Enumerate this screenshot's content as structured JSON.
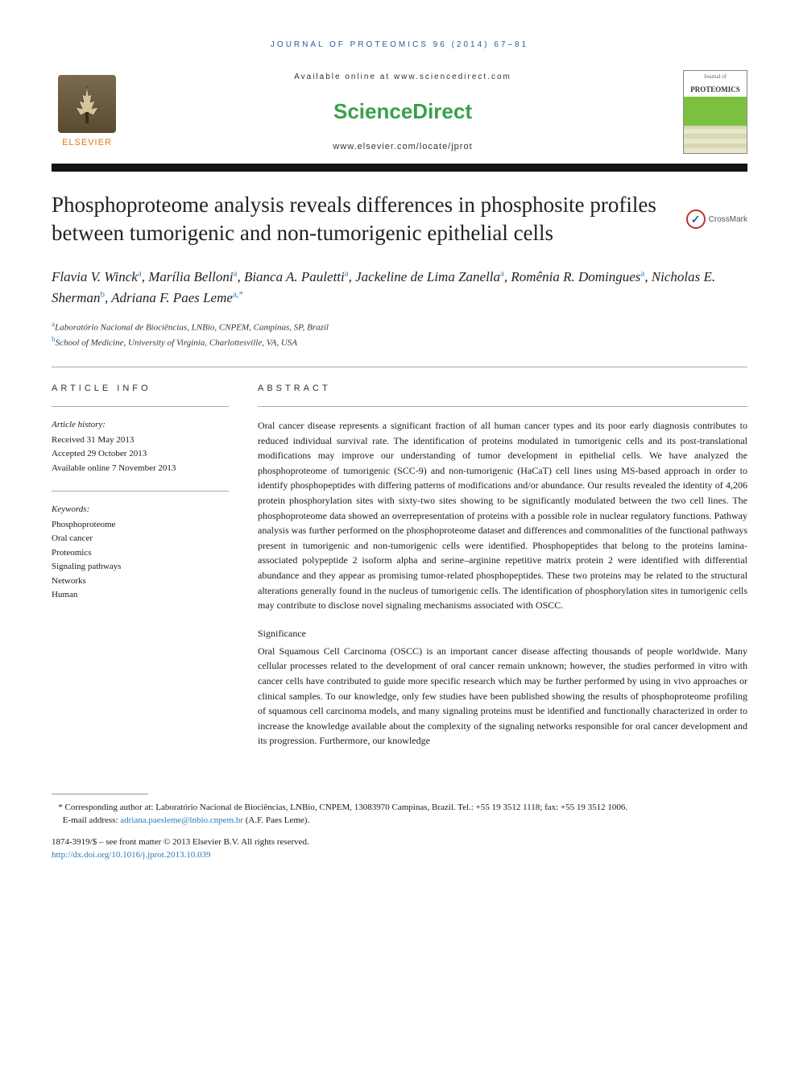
{
  "journal_ref": "JOURNAL OF PROTEOMICS 96 (2014) 67–81",
  "banner": {
    "publisher_name": "ELSEVIER",
    "avail_online": "Available online at www.sciencedirect.com",
    "brand": "ScienceDirect",
    "locate_url": "www.elsevier.com/locate/jprot",
    "cover_journal": "Journal of",
    "cover_title": "PROTEOMICS"
  },
  "title": "Phosphoproteome analysis reveals differences in phosphosite profiles between tumorigenic and non-tumorigenic epithelial cells",
  "crossmark_label": "CrossMark",
  "authors_html": "Flavia V. Winck<sup>a</sup>, Marília Belloni<sup>a</sup>, Bianca A. Pauletti<sup>a</sup>, Jackeline de Lima Zanella<sup>a</sup>, Romênia R. Domingues<sup>a</sup>, Nicholas E. Sherman<sup>b</sup>, Adriana F. Paes Leme<sup>a,*</sup>",
  "affiliations": {
    "a": "Laboratório Nacional de Biociências, LNBio, CNPEM, Campinas, SP, Brazil",
    "b": "School of Medicine, University of Virginia, Charlottesville, VA, USA"
  },
  "article_info": {
    "label": "ARTICLE INFO",
    "history_heading": "Article history:",
    "received": "Received 31 May 2013",
    "accepted": "Accepted 29 October 2013",
    "online": "Available online 7 November 2013",
    "keywords_heading": "Keywords:",
    "keywords": [
      "Phosphoproteome",
      "Oral cancer",
      "Proteomics",
      "Signaling pathways",
      "Networks",
      "Human"
    ]
  },
  "abstract": {
    "label": "ABSTRACT",
    "text": "Oral cancer disease represents a significant fraction of all human cancer types and its poor early diagnosis contributes to reduced individual survival rate. The identification of proteins modulated in tumorigenic cells and its post-translational modifications may improve our understanding of tumor development in epithelial cells. We have analyzed the phosphoproteome of tumorigenic (SCC-9) and non-tumorigenic (HaCaT) cell lines using MS-based approach in order to identify phosphopeptides with differing patterns of modifications and/or abundance. Our results revealed the identity of 4,206 protein phosphorylation sites with sixty-two sites showing to be significantly modulated between the two cell lines. The phosphoproteome data showed an overrepresentation of proteins with a possible role in nuclear regulatory functions. Pathway analysis was further performed on the phosphoproteome dataset and differences and commonalities of the functional pathways present in tumorigenic and non-tumorigenic cells were identified. Phosphopeptides that belong to the proteins lamina-associated polypeptide 2 isoform alpha and serine–arginine repetitive matrix protein 2 were identified with differential abundance and they appear as promising tumor-related phosphopeptides. These two proteins may be related to the structural alterations generally found in the nucleus of tumorigenic cells. The identification of phosphorylation sites in tumorigenic cells may contribute to disclose novel signaling mechanisms associated with OSCC.",
    "significance_label": "Significance",
    "significance": "Oral Squamous Cell Carcinoma (OSCC) is an important cancer disease affecting thousands of people worldwide. Many cellular processes related to the development of oral cancer remain unknown; however, the studies performed in vitro with cancer cells have contributed to guide more specific research which may be further performed by using in vivo approaches or clinical samples. To our knowledge, only few studies have been published showing the results of phosphoproteome profiling of squamous cell carcinoma models, and many signaling proteins must be identified and functionally characterized in order to increase the knowledge available about the complexity of the signaling networks responsible for oral cancer development and its progression. Furthermore, our knowledge"
  },
  "footnotes": {
    "corresponding": "Corresponding author at: Laboratório Nacional de Biociências, LNBio, CNPEM, 13083970 Campinas, Brazil. Tel.: +55 19 3512 1118; fax: +55 19 3512 1006.",
    "email_label": "E-mail address:",
    "email": "adriana.paesleme@lnbio.cnpem.br",
    "email_person": "(A.F. Paes Leme).",
    "issn_line": "1874-3919/$ – see front matter © 2013 Elsevier B.V. All rights reserved.",
    "doi": "http://dx.doi.org/10.1016/j.jprot.2013.10.039"
  },
  "colors": {
    "link": "#2b7ab8",
    "brand_green": "#3aa04a",
    "publisher_orange": "#e67817",
    "journal_blue": "#2b5a9e"
  }
}
